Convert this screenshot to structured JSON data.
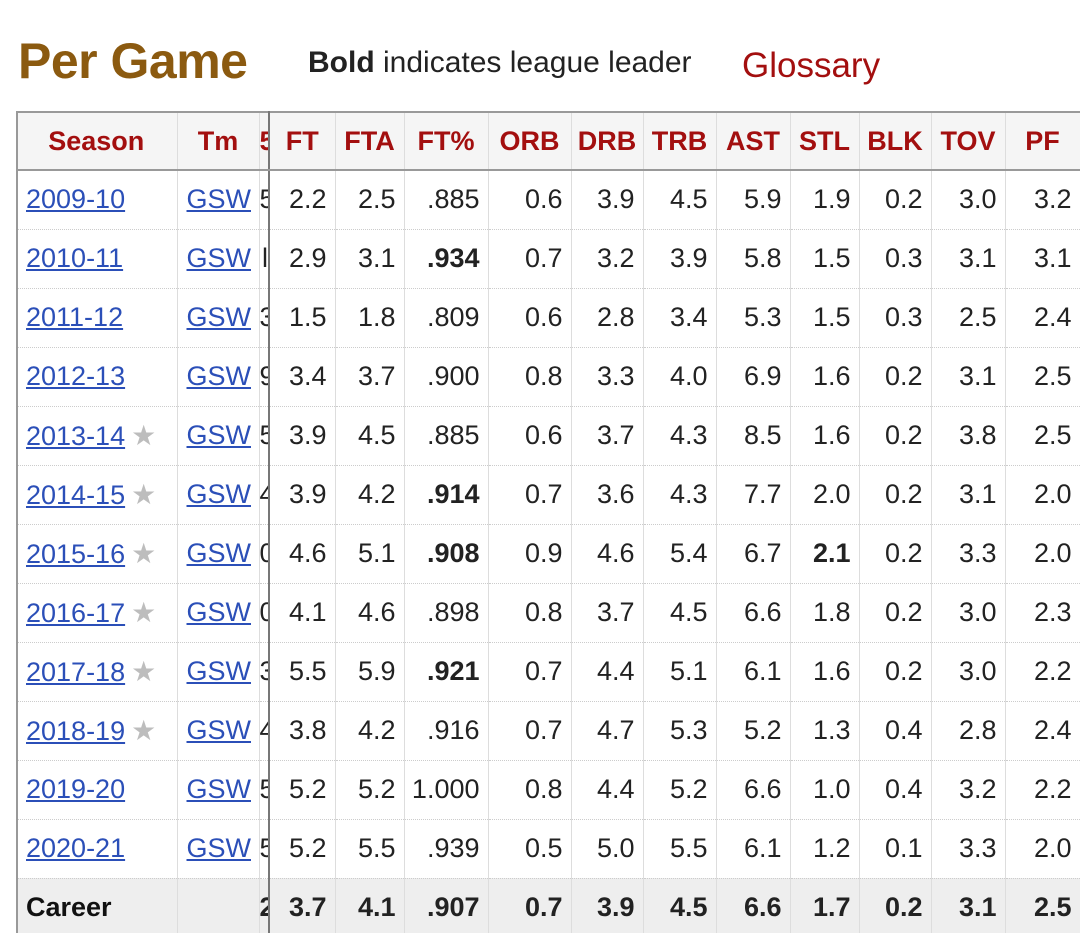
{
  "header": {
    "title": "Per Game",
    "note_bold": "Bold",
    "note_rest": " indicates league leader",
    "glossary": "Glossary"
  },
  "columns": [
    "Season",
    "Tm",
    "5",
    "FT",
    "FTA",
    "FT%",
    "ORB",
    "DRB",
    "TRB",
    "AST",
    "STL",
    "BLK",
    "TOV",
    "PF"
  ],
  "rows": [
    {
      "season": "2009-10",
      "star": false,
      "tm": "GSW",
      "clip": "5",
      "ft": "2.2",
      "fta": "2.5",
      "ftp": ".885",
      "ftp_lead": false,
      "orb": "0.6",
      "drb": "3.9",
      "trb": "4.5",
      "ast": "5.9",
      "stl": "1.9",
      "stl_lead": false,
      "blk": "0.2",
      "tov": "3.0",
      "pf": "3.2"
    },
    {
      "season": "2010-11",
      "star": false,
      "tm": "GSW",
      "clip": "l",
      "ft": "2.9",
      "fta": "3.1",
      "ftp": ".934",
      "ftp_lead": true,
      "orb": "0.7",
      "drb": "3.2",
      "trb": "3.9",
      "ast": "5.8",
      "stl": "1.5",
      "stl_lead": false,
      "blk": "0.3",
      "tov": "3.1",
      "pf": "3.1"
    },
    {
      "season": "2011-12",
      "star": false,
      "tm": "GSW",
      "clip": "3",
      "ft": "1.5",
      "fta": "1.8",
      "ftp": ".809",
      "ftp_lead": false,
      "orb": "0.6",
      "drb": "2.8",
      "trb": "3.4",
      "ast": "5.3",
      "stl": "1.5",
      "stl_lead": false,
      "blk": "0.3",
      "tov": "2.5",
      "pf": "2.4"
    },
    {
      "season": "2012-13",
      "star": false,
      "tm": "GSW",
      "clip": "9",
      "ft": "3.4",
      "fta": "3.7",
      "ftp": ".900",
      "ftp_lead": false,
      "orb": "0.8",
      "drb": "3.3",
      "trb": "4.0",
      "ast": "6.9",
      "stl": "1.6",
      "stl_lead": false,
      "blk": "0.2",
      "tov": "3.1",
      "pf": "2.5"
    },
    {
      "season": "2013-14",
      "star": true,
      "tm": "GSW",
      "clip": "5",
      "ft": "3.9",
      "fta": "4.5",
      "ftp": ".885",
      "ftp_lead": false,
      "orb": "0.6",
      "drb": "3.7",
      "trb": "4.3",
      "ast": "8.5",
      "stl": "1.6",
      "stl_lead": false,
      "blk": "0.2",
      "tov": "3.8",
      "pf": "2.5"
    },
    {
      "season": "2014-15",
      "star": true,
      "tm": "GSW",
      "clip": "4",
      "ft": "3.9",
      "fta": "4.2",
      "ftp": ".914",
      "ftp_lead": true,
      "orb": "0.7",
      "drb": "3.6",
      "trb": "4.3",
      "ast": "7.7",
      "stl": "2.0",
      "stl_lead": false,
      "blk": "0.2",
      "tov": "3.1",
      "pf": "2.0"
    },
    {
      "season": "2015-16",
      "star": true,
      "tm": "GSW",
      "clip": "0",
      "ft": "4.6",
      "fta": "5.1",
      "ftp": ".908",
      "ftp_lead": true,
      "orb": "0.9",
      "drb": "4.6",
      "trb": "5.4",
      "ast": "6.7",
      "stl": "2.1",
      "stl_lead": true,
      "blk": "0.2",
      "tov": "3.3",
      "pf": "2.0"
    },
    {
      "season": "2016-17",
      "star": true,
      "tm": "GSW",
      "clip": "0",
      "ft": "4.1",
      "fta": "4.6",
      "ftp": ".898",
      "ftp_lead": false,
      "orb": "0.8",
      "drb": "3.7",
      "trb": "4.5",
      "ast": "6.6",
      "stl": "1.8",
      "stl_lead": false,
      "blk": "0.2",
      "tov": "3.0",
      "pf": "2.3"
    },
    {
      "season": "2017-18",
      "star": true,
      "tm": "GSW",
      "clip": "3",
      "ft": "5.5",
      "fta": "5.9",
      "ftp": ".921",
      "ftp_lead": true,
      "orb": "0.7",
      "drb": "4.4",
      "trb": "5.1",
      "ast": "6.1",
      "stl": "1.6",
      "stl_lead": false,
      "blk": "0.2",
      "tov": "3.0",
      "pf": "2.2"
    },
    {
      "season": "2018-19",
      "star": true,
      "tm": "GSW",
      "clip": "4",
      "ft": "3.8",
      "fta": "4.2",
      "ftp": ".916",
      "ftp_lead": false,
      "orb": "0.7",
      "drb": "4.7",
      "trb": "5.3",
      "ast": "5.2",
      "stl": "1.3",
      "stl_lead": false,
      "blk": "0.4",
      "tov": "2.8",
      "pf": "2.4"
    },
    {
      "season": "2019-20",
      "star": false,
      "tm": "GSW",
      "clip": "5",
      "ft": "5.2",
      "fta": "5.2",
      "ftp": "1.000",
      "ftp_lead": false,
      "orb": "0.8",
      "drb": "4.4",
      "trb": "5.2",
      "ast": "6.6",
      "stl": "1.0",
      "stl_lead": false,
      "blk": "0.4",
      "tov": "3.2",
      "pf": "2.2"
    },
    {
      "season": "2020-21",
      "star": false,
      "tm": "GSW",
      "clip": "5",
      "ft": "5.2",
      "fta": "5.5",
      "ftp": ".939",
      "ftp_lead": false,
      "orb": "0.5",
      "drb": "5.0",
      "trb": "5.5",
      "ast": "6.1",
      "stl": "1.2",
      "stl_lead": false,
      "blk": "0.1",
      "tov": "3.3",
      "pf": "2.0"
    }
  ],
  "career": {
    "label": "Career",
    "clip": "2",
    "ft": "3.7",
    "fta": "4.1",
    "ftp": ".907",
    "orb": "0.7",
    "drb": "3.9",
    "trb": "4.5",
    "ast": "6.6",
    "stl": "1.7",
    "blk": "0.2",
    "tov": "3.1",
    "pf": "2.5"
  },
  "icons": {
    "star": "star-icon"
  },
  "colors": {
    "title": "#8b5a10",
    "header_text": "#a30f0f",
    "link": "#2b4fb8",
    "star": "#bdbdbd"
  }
}
